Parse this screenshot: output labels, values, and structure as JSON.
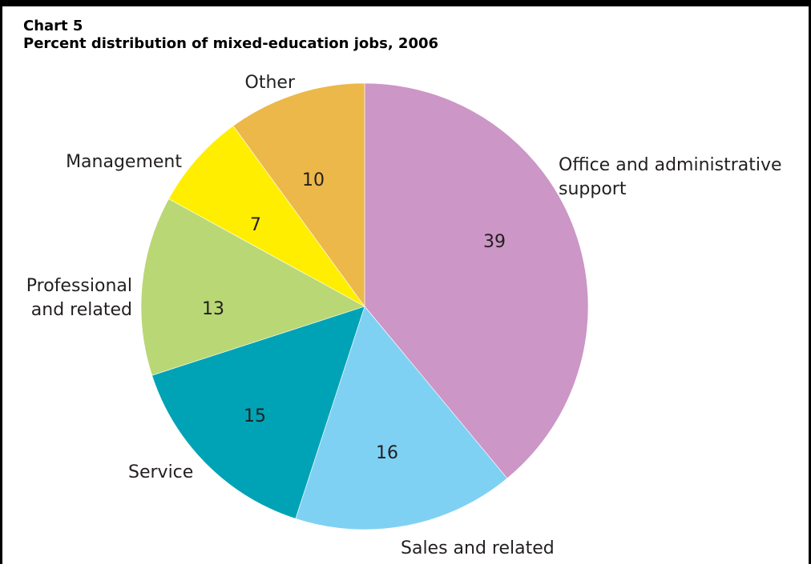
{
  "chart_number": "Chart 5",
  "chart_data": {
    "type": "pie",
    "title": "Percent distribution of mixed-education jobs, 2006",
    "slices": [
      {
        "label": "Office and administrative support",
        "value": 39,
        "color": "#cc96c6"
      },
      {
        "label": "Sales and related",
        "value": 16,
        "color": "#7fd1f3"
      },
      {
        "label": "Service",
        "value": 15,
        "color": "#00a3b5"
      },
      {
        "label": "Professional and related",
        "value": 13,
        "color": "#b9d774"
      },
      {
        "label": "Management",
        "value": 7,
        "color": "#ffee00"
      },
      {
        "label": "Other",
        "value": 10,
        "color": "#ecb849"
      }
    ],
    "start": "12 o'clock",
    "direction": "clockwise",
    "legend": "none"
  }
}
